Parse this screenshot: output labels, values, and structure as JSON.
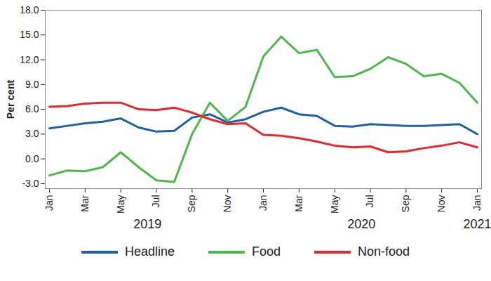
{
  "chart_data": {
    "type": "line",
    "y_label": "Per cent",
    "categories": [
      "Jan",
      null,
      "Mar",
      null,
      "May",
      null,
      "Jul",
      null,
      "Sep",
      null,
      "Nov",
      null,
      "Jan",
      null,
      "Mar",
      null,
      "May",
      null,
      "Jul",
      null,
      "Sep",
      null,
      "Nov",
      null,
      "Jan"
    ],
    "years": [
      "2019",
      "2019",
      "2019",
      "2019",
      "2019",
      "2019",
      "2019",
      "2019",
      "2019",
      "2019",
      "2019",
      "2019",
      "2020",
      "2020",
      "2020",
      "2020",
      "2020",
      "2020",
      "2020",
      "2020",
      "2020",
      "2020",
      "2020",
      "2020",
      "2021"
    ],
    "series": [
      {
        "name": "Headline",
        "color": "#1f5fa8",
        "values": [
          3.7,
          4.0,
          4.3,
          4.5,
          4.9,
          3.8,
          3.3,
          3.4,
          5.0,
          5.4,
          4.4,
          4.8,
          5.7,
          6.2,
          5.4,
          5.2,
          4.0,
          3.9,
          4.2,
          4.1,
          4.0,
          4.0,
          4.1,
          4.2,
          3.0
        ]
      },
      {
        "name": "Food",
        "color": "#4cb848",
        "values": [
          -2.0,
          -1.4,
          -1.5,
          -1.0,
          0.8,
          -1.0,
          -2.6,
          -2.8,
          3.0,
          6.8,
          4.6,
          6.3,
          12.4,
          14.8,
          12.8,
          13.2,
          9.9,
          10.0,
          10.9,
          12.3,
          11.5,
          10.0,
          10.3,
          9.2,
          6.8
        ]
      },
      {
        "name": "Non-food",
        "color": "#e8262b",
        "values": [
          6.3,
          6.4,
          6.7,
          6.8,
          6.8,
          6.0,
          5.9,
          6.2,
          5.6,
          4.8,
          4.2,
          4.3,
          2.9,
          2.8,
          2.5,
          2.1,
          1.6,
          1.4,
          1.5,
          0.8,
          0.9,
          1.3,
          1.6,
          2.0,
          1.4
        ]
      }
    ],
    "ylim": [
      -3.6,
      18
    ],
    "yticks": [
      {
        "value": -3,
        "label": "-3.0"
      },
      {
        "value": 0,
        "label": "0.0"
      },
      {
        "value": 3,
        "label": "3.0"
      },
      {
        "value": 6,
        "label": "6.0"
      },
      {
        "value": 9,
        "label": "9.0"
      },
      {
        "value": 12,
        "label": "12.0"
      },
      {
        "value": 15,
        "label": "15.0"
      },
      {
        "value": 18,
        "label": "18.0"
      }
    ],
    "grid": false,
    "legend": "bottom"
  }
}
